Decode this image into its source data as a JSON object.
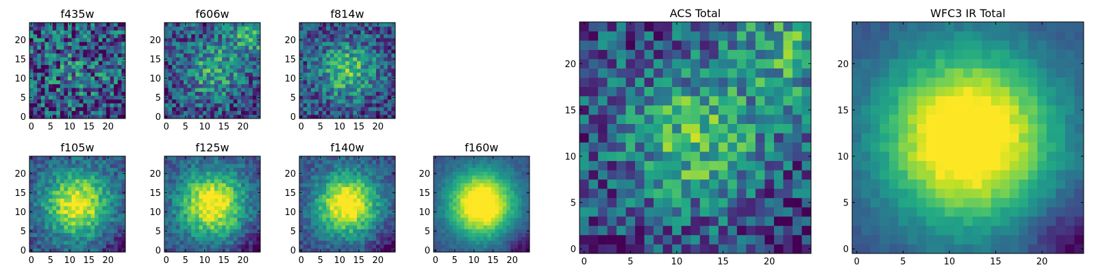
{
  "chart_data": [
    {
      "type": "heatmap",
      "title": "f435w",
      "xlim": [
        -0.5,
        24.5
      ],
      "ylim": [
        -0.5,
        24.5
      ],
      "xticks": [
        "0",
        "5",
        "10",
        "15",
        "20"
      ],
      "yticks": [
        "0",
        "5",
        "10",
        "15",
        "20"
      ],
      "colormap": "viridis",
      "grid": false,
      "description_center": [
        12,
        12
      ]
    },
    {
      "type": "heatmap",
      "title": "f606w",
      "xlim": [
        -0.5,
        24.5
      ],
      "ylim": [
        -0.5,
        24.5
      ],
      "xticks": [
        "0",
        "5",
        "10",
        "15",
        "20"
      ],
      "yticks": [
        "0",
        "5",
        "10",
        "15",
        "20"
      ],
      "colormap": "viridis",
      "grid": false
    },
    {
      "type": "heatmap",
      "title": "f814w",
      "xlim": [
        -0.5,
        24.5
      ],
      "ylim": [
        -0.5,
        24.5
      ],
      "xticks": [
        "0",
        "5",
        "10",
        "15",
        "20"
      ],
      "yticks": [
        "0",
        "5",
        "10",
        "15",
        "20"
      ],
      "colormap": "viridis",
      "grid": false
    },
    {
      "type": "heatmap",
      "title": "f105w",
      "xlim": [
        -0.5,
        24.5
      ],
      "ylim": [
        -0.5,
        24.5
      ],
      "xticks": [
        "0",
        "5",
        "10",
        "15",
        "20"
      ],
      "yticks": [
        "0",
        "5",
        "10",
        "15",
        "20"
      ],
      "colormap": "viridis",
      "grid": false
    },
    {
      "type": "heatmap",
      "title": "f125w",
      "xlim": [
        -0.5,
        24.5
      ],
      "ylim": [
        -0.5,
        24.5
      ],
      "xticks": [
        "0",
        "5",
        "10",
        "15",
        "20"
      ],
      "yticks": [
        "0",
        "5",
        "10",
        "15",
        "20"
      ],
      "colormap": "viridis",
      "grid": false
    },
    {
      "type": "heatmap",
      "title": "f140w",
      "xlim": [
        -0.5,
        24.5
      ],
      "ylim": [
        -0.5,
        24.5
      ],
      "xticks": [
        "0",
        "5",
        "10",
        "15",
        "20"
      ],
      "yticks": [
        "0",
        "5",
        "10",
        "15",
        "20"
      ],
      "colormap": "viridis",
      "grid": false
    },
    {
      "type": "heatmap",
      "title": "f160w",
      "xlim": [
        -0.5,
        24.5
      ],
      "ylim": [
        -0.5,
        24.5
      ],
      "xticks": [
        "0",
        "5",
        "10",
        "15",
        "20"
      ],
      "yticks": [
        "0",
        "5",
        "10",
        "15",
        "20"
      ],
      "colormap": "viridis",
      "grid": false
    },
    {
      "type": "heatmap",
      "title": "ACS Total",
      "xlim": [
        -0.5,
        24.5
      ],
      "ylim": [
        -0.5,
        24.5
      ],
      "xticks": [
        "0",
        "5",
        "10",
        "15",
        "20"
      ],
      "yticks": [
        "0",
        "5",
        "10",
        "15",
        "20"
      ],
      "colormap": "viridis",
      "grid": false
    },
    {
      "type": "heatmap",
      "title": "WFC3 IR Total",
      "xlim": [
        -0.5,
        24.5
      ],
      "ylim": [
        -0.5,
        24.5
      ],
      "xticks": [
        "0",
        "5",
        "10",
        "15",
        "20"
      ],
      "yticks": [
        "0",
        "5",
        "10",
        "15",
        "20"
      ],
      "colormap": "viridis",
      "grid": false
    }
  ]
}
